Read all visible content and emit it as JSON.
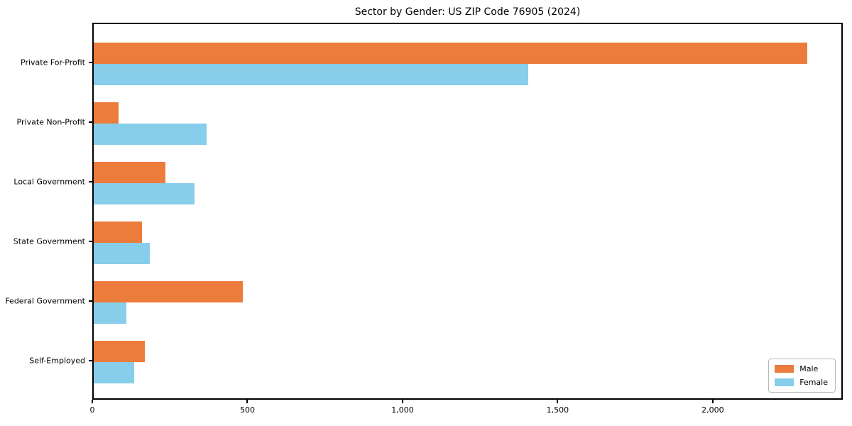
{
  "figure": {
    "background": "#ffffff",
    "text_color": "#000000",
    "spine_color": "#000000"
  },
  "chart_data": {
    "type": "bar",
    "orientation": "horizontal",
    "title": "Sector by Gender: US ZIP Code 76905 (2024)",
    "categories": [
      "Private For-Profit",
      "Private Non-Profit",
      "Local Government",
      "State Government",
      "Federal Government",
      "Self-Employed"
    ],
    "series": [
      {
        "name": "Male",
        "color": "#EC7C3C",
        "values": [
          2300,
          80,
          230,
          155,
          480,
          165
        ]
      },
      {
        "name": "Female",
        "color": "#87CEEB",
        "values": [
          1400,
          365,
          325,
          180,
          105,
          130
        ]
      }
    ],
    "xlabel": "",
    "ylabel": "",
    "xlim": [
      0,
      2419
    ],
    "x_ticks": [
      {
        "value": 0,
        "label": "0"
      },
      {
        "value": 500,
        "label": "500"
      },
      {
        "value": 1000,
        "label": "1,000"
      },
      {
        "value": 1500,
        "label": "1,500"
      },
      {
        "value": 2000,
        "label": "2,000"
      }
    ],
    "grid": false,
    "legend": {
      "position": "lower right",
      "entries": [
        {
          "label": "Male",
          "color": "#EC7C3C"
        },
        {
          "label": "Female",
          "color": "#87CEEB"
        }
      ]
    }
  }
}
